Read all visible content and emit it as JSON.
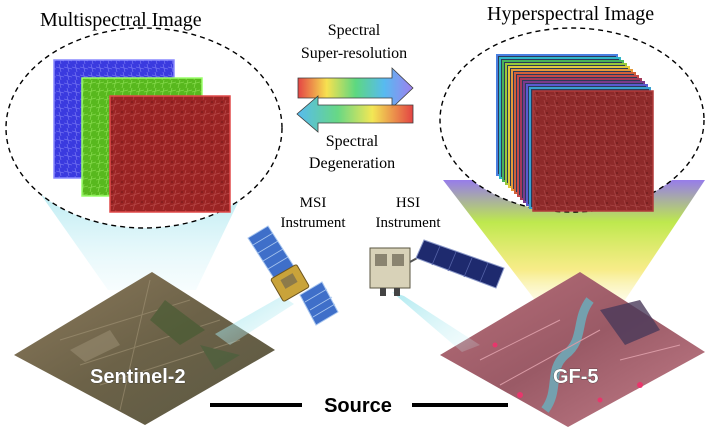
{
  "titles": {
    "multispectral": "Multispectral Image",
    "hyperspectral": "Hyperspectral Image"
  },
  "arrows": {
    "top_line1": "Spectral",
    "top_line2": "Super-resolution",
    "bottom_line1": "Spectral",
    "bottom_line2": "Degeneration"
  },
  "instruments": {
    "msi_line1": "MSI",
    "msi_line2": "Instrument",
    "hsi_line1": "HSI",
    "hsi_line2": "Instrument"
  },
  "ground": {
    "left_label": "Sentinel-2",
    "right_label": "GF-5"
  },
  "source_label": "Source",
  "colors": {
    "msi_band_blue": "#3a3adf",
    "msi_band_green": "#58b81e",
    "msi_band_red": "#9a2424",
    "hsi_band_red": "#8e2a2a",
    "cone_left": "#7fd8e6",
    "cone_right_top": "#8d6ee8",
    "cone_right_mid": "#b7e83a",
    "cone_right_bottom": "#f3e25a"
  }
}
